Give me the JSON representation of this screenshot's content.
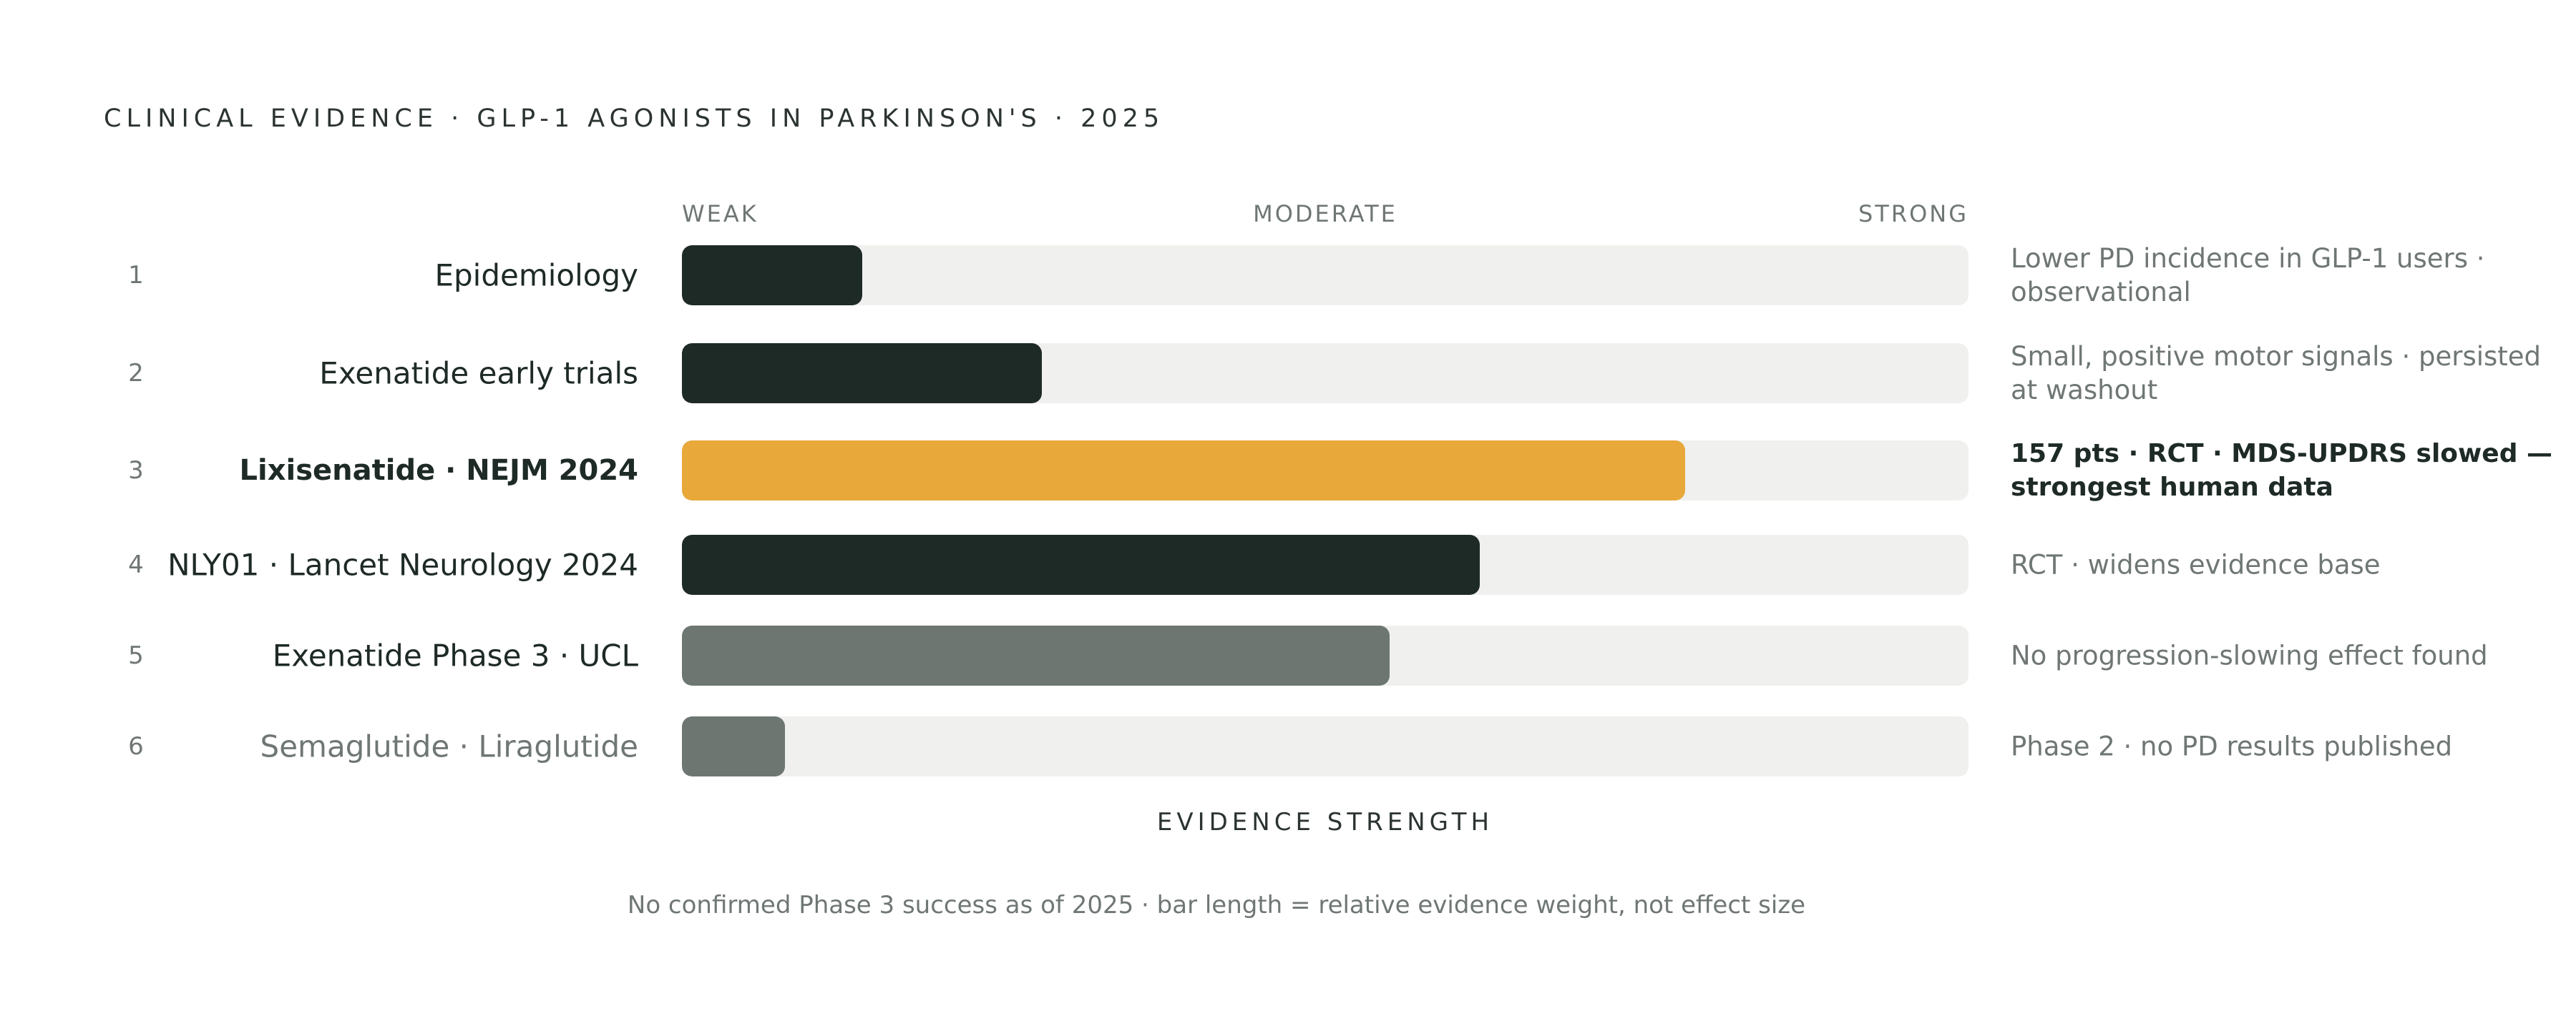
{
  "chart_data": {
    "type": "bar",
    "orientation": "horizontal",
    "title": "CLINICAL EVIDENCE · GLP-1 AGONISTS IN PARKINSON'S · 2025",
    "scale_labels": [
      "WEAK",
      "MODERATE",
      "STRONG"
    ],
    "xlabel": "EVIDENCE STRENGTH",
    "xlim": [
      0,
      100
    ],
    "footnote": "No confirmed Phase 3 success as of 2025 · bar length = relative evidence weight, not effect size",
    "colors": {
      "strong": "#1e2a26",
      "highlight": "#e8a83a",
      "null": "#6e7672",
      "track": "#f0f0ee"
    },
    "rows": [
      {
        "rank": "1",
        "label": "Epidemiology",
        "value": 14,
        "color": "#1e2a26",
        "style": "normal",
        "note": "Lower PD incidence in GLP-1 users · observational"
      },
      {
        "rank": "2",
        "label": "Exenatide early trials",
        "value": 28,
        "color": "#1e2a26",
        "style": "normal",
        "note": "Small, positive motor signals · persisted at washout"
      },
      {
        "rank": "3",
        "label": "Lixisenatide · NEJM 2024",
        "value": 78,
        "color": "#e8a83a",
        "style": "highlight",
        "note": "157 pts · RCT · MDS-UPDRS slowed — strongest human data"
      },
      {
        "rank": "4",
        "label": "NLY01 · Lancet Neurology 2024",
        "value": 62,
        "color": "#1e2a26",
        "style": "normal",
        "note": "RCT · widens evidence base"
      },
      {
        "rank": "5",
        "label": "Exenatide Phase 3 · UCL",
        "value": 55,
        "color": "#6e7672",
        "style": "normal",
        "note": "No progression-slowing effect found"
      },
      {
        "rank": "6",
        "label": "Semaglutide · Liraglutide",
        "value": 8,
        "color": "#6e7672",
        "style": "muted",
        "note": "Phase 2 · no PD results published"
      }
    ]
  }
}
